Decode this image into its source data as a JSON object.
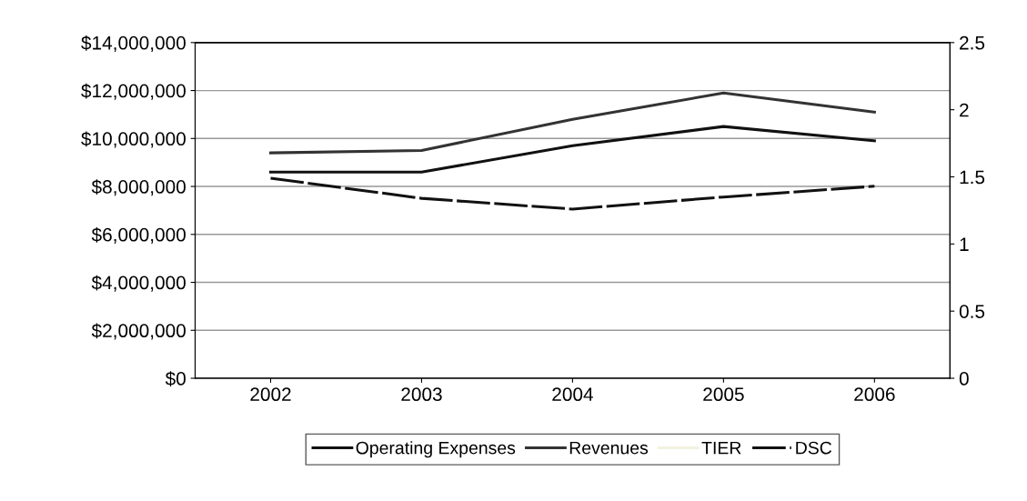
{
  "chart_data": {
    "type": "line",
    "categories": [
      "2002",
      "2003",
      "2004",
      "2005",
      "2006"
    ],
    "series": [
      {
        "name": "Operating Expenses",
        "color": "#111111",
        "values": [
          8600000,
          8600000,
          9700000,
          10500000,
          9900000
        ]
      },
      {
        "name": "Revenues",
        "color": "#333333",
        "values": [
          9400000,
          9500000,
          10800000,
          11900000,
          11100000
        ]
      },
      {
        "name": "TIER",
        "color": "#f2f2e0",
        "axis": "y2",
        "values": [
          null,
          null,
          null,
          null,
          null
        ]
      },
      {
        "name": "DSC",
        "color": "#111111",
        "axis": "y2",
        "line_style": "dashed",
        "values": [
          1.49,
          1.34,
          1.26,
          1.35,
          1.43
        ]
      }
    ],
    "ylim": [
      0,
      14000000
    ],
    "yticks": [
      {
        "value": 0,
        "label": "$0"
      },
      {
        "value": 2000000,
        "label": "$2,000,000"
      },
      {
        "value": 4000000,
        "label": "$4,000,000"
      },
      {
        "value": 6000000,
        "label": "$6,000,000"
      },
      {
        "value": 8000000,
        "label": "$8,000,000"
      },
      {
        "value": 10000000,
        "label": "$10,000,000"
      },
      {
        "value": 12000000,
        "label": "$12,000,000"
      },
      {
        "value": 14000000,
        "label": "$14,000,000"
      }
    ],
    "y2lim": [
      0,
      2.5
    ],
    "y2ticks": [
      0,
      0.5,
      1,
      1.5,
      2,
      2.5
    ],
    "grid": "y",
    "legend": "bottom",
    "marker": "none"
  }
}
